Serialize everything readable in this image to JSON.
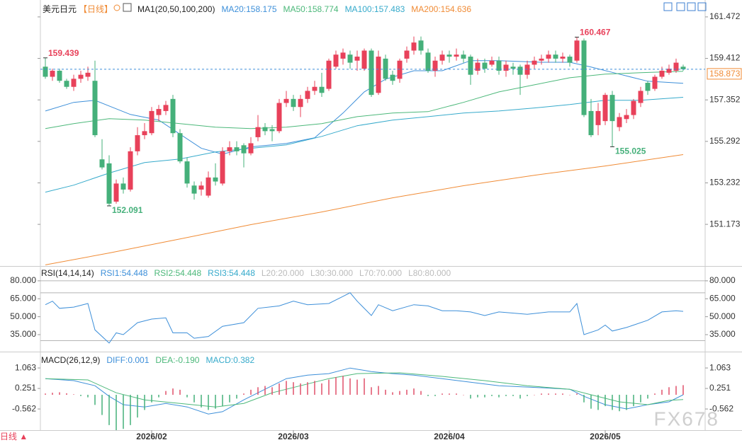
{
  "chart_data": [
    {
      "type": "candlestick",
      "title": "美元日元",
      "period": "【日线】",
      "indicator": "MA1(20,50,100,200)",
      "categories": [
        null,
        null,
        null,
        null,
        null,
        null,
        null,
        null,
        null,
        null,
        null,
        null,
        null,
        null,
        null,
        "2026/02",
        null,
        null,
        null,
        null,
        null,
        null,
        null,
        null,
        null,
        null,
        null,
        null,
        null,
        null,
        null,
        null,
        null,
        null,
        null,
        "2026/03",
        null,
        null,
        null,
        null,
        null,
        null,
        null,
        null,
        null,
        null,
        null,
        null,
        null,
        null,
        null,
        null,
        null,
        null,
        null,
        null,
        null,
        "2026/04",
        null,
        null,
        null,
        null,
        null,
        null,
        null,
        null,
        null,
        null,
        null,
        null,
        null,
        null,
        null,
        null,
        null,
        null,
        null,
        null,
        null,
        "2026/05",
        null,
        null,
        null,
        null,
        null,
        null,
        null,
        null,
        null,
        null,
        null
      ],
      "open": [
        159.0,
        158.5,
        158.8,
        158.3,
        158.0,
        158.4,
        158.5,
        158.3,
        154.4,
        154.2,
        152.3,
        153.2,
        152.9,
        154.8,
        155.6,
        155.7,
        156.6,
        156.8,
        157.4,
        155.7,
        154.3,
        153.1,
        152.9,
        152.6,
        153.5,
        153.2,
        154.8,
        155.0,
        155.1,
        154.7,
        155.5,
        156.0,
        155.9,
        155.8,
        157.2,
        157.4,
        157.0,
        157.4,
        157.8,
        158.0,
        157.9,
        159.0,
        159.4,
        159.6,
        159.3,
        158.9,
        159.8,
        157.7,
        159.4,
        158.6,
        158.4,
        159.4,
        159.8,
        160.3,
        159.7,
        158.8,
        159.3,
        159.6,
        159.5,
        159.6,
        159.5,
        158.8,
        159.2,
        159.1,
        159.3,
        158.8,
        159.0,
        159.0,
        158.6,
        159.1,
        159.3,
        159.4,
        159.6,
        159.4,
        159.5,
        159.3,
        160.3,
        156.8,
        156.1,
        156.3,
        157.6,
        156.0,
        156.4,
        156.6,
        157.2,
        158.2,
        157.9,
        158.5,
        158.7,
        158.8,
        159.0
      ],
      "high": [
        159.439,
        158.9,
        158.9,
        158.4,
        158.6,
        158.8,
        159.0,
        159.3,
        155.4,
        154.6,
        153.4,
        153.5,
        155.0,
        156.0,
        156.2,
        157.0,
        157.1,
        157.3,
        157.6,
        155.9,
        154.5,
        153.3,
        153.3,
        153.8,
        154.2,
        155.0,
        155.3,
        155.3,
        155.2,
        155.5,
        156.6,
        156.2,
        156.1,
        157.4,
        157.8,
        157.6,
        157.6,
        158.0,
        158.3,
        158.7,
        159.4,
        159.8,
        159.9,
        159.8,
        159.8,
        159.9,
        159.9,
        159.8,
        159.6,
        158.8,
        159.4,
        160.0,
        160.5,
        160.5,
        159.9,
        159.5,
        159.8,
        159.8,
        159.9,
        159.8,
        159.6,
        159.4,
        159.4,
        159.5,
        159.5,
        159.3,
        159.2,
        159.1,
        159.3,
        159.5,
        159.6,
        159.8,
        159.8,
        159.7,
        159.6,
        160.467,
        160.4,
        157.4,
        157.2,
        157.7,
        157.8,
        156.7,
        156.9,
        157.4,
        158.0,
        158.3,
        158.6,
        159.0,
        159.1,
        159.4,
        159.1
      ],
      "low": [
        158.4,
        158.3,
        158.2,
        157.9,
        157.8,
        158.2,
        158.3,
        155.5,
        153.9,
        152.091,
        152.2,
        152.7,
        152.8,
        154.6,
        155.4,
        155.6,
        156.3,
        156.6,
        155.5,
        154.2,
        153.0,
        152.4,
        152.6,
        152.5,
        153.1,
        153.1,
        154.6,
        154.6,
        154.0,
        154.6,
        155.3,
        155.6,
        155.3,
        155.7,
        157.0,
        156.8,
        156.5,
        157.2,
        157.6,
        157.5,
        157.8,
        158.9,
        159.1,
        158.9,
        158.8,
        158.8,
        157.5,
        157.6,
        158.3,
        158.1,
        158.2,
        159.2,
        159.6,
        159.6,
        158.7,
        158.5,
        159.1,
        159.2,
        159.3,
        159.2,
        158.1,
        158.6,
        158.7,
        159.0,
        158.6,
        158.5,
        158.6,
        157.6,
        158.4,
        158.9,
        159.1,
        159.2,
        159.2,
        159.2,
        159.0,
        159.2,
        156.5,
        155.5,
        155.6,
        156.1,
        155.025,
        155.8,
        156.2,
        156.4,
        157.0,
        157.6,
        157.8,
        158.4,
        158.6,
        158.7,
        158.8
      ],
      "close": [
        158.5,
        158.8,
        158.3,
        158.0,
        158.4,
        158.6,
        158.7,
        155.6,
        154.0,
        152.2,
        153.2,
        152.9,
        154.8,
        155.6,
        155.8,
        156.8,
        156.9,
        157.1,
        155.7,
        154.3,
        153.2,
        152.7,
        153.1,
        153.5,
        153.3,
        154.8,
        155.0,
        154.8,
        154.7,
        155.2,
        156.0,
        155.8,
        155.8,
        157.2,
        157.4,
        157.0,
        157.4,
        157.8,
        158.0,
        157.7,
        159.3,
        159.6,
        159.7,
        159.2,
        159.5,
        159.8,
        157.6,
        159.5,
        158.4,
        158.3,
        159.3,
        159.8,
        160.2,
        159.8,
        158.8,
        159.3,
        159.6,
        159.5,
        159.6,
        159.4,
        158.6,
        159.2,
        158.9,
        159.3,
        158.8,
        159.1,
        158.9,
        158.6,
        159.1,
        159.3,
        159.4,
        159.6,
        159.4,
        159.5,
        159.2,
        160.3,
        156.6,
        155.6,
        156.8,
        157.6,
        156.3,
        156.5,
        156.6,
        157.3,
        157.8,
        157.8,
        158.5,
        158.8,
        158.9,
        159.2,
        158.873
      ],
      "up_color": "#e8415a",
      "down_color": "#45b07a",
      "ylim": [
        149.14,
        161.96
      ],
      "yticks": [
        151.173,
        153.232,
        155.292,
        157.352,
        159.412,
        161.472
      ],
      "series": [
        {
          "name": "MA20:158.175",
          "color": "#3d8fd9",
          "x": [
            0,
            4,
            7,
            9,
            12,
            16,
            19,
            22,
            25,
            29,
            34,
            38,
            42,
            45,
            48,
            52,
            56,
            60,
            64,
            70,
            74,
            77,
            81,
            85,
            90
          ],
          "values": [
            156.8,
            157.23,
            157.33,
            157.05,
            156.63,
            156.35,
            155.65,
            154.95,
            154.66,
            155.02,
            155.19,
            155.47,
            156.7,
            157.75,
            158.38,
            158.8,
            158.8,
            159.3,
            159.3,
            159.22,
            159.22,
            158.98,
            158.63,
            158.28,
            158.175
          ]
        },
        {
          "name": "MA50:158.774",
          "color": "#4cb87a",
          "x": [
            0,
            4,
            9,
            14,
            19,
            24,
            29,
            34,
            39,
            44,
            49,
            54,
            59,
            64,
            69,
            74,
            79,
            84,
            90
          ],
          "values": [
            155.93,
            156.17,
            156.42,
            156.35,
            156.17,
            156.0,
            155.93,
            156.0,
            156.17,
            156.52,
            156.7,
            156.77,
            157.23,
            157.75,
            158.1,
            158.45,
            158.63,
            158.7,
            158.774
          ]
        },
        {
          "name": "MA100:157.483",
          "color": "#36aacb",
          "x": [
            0,
            4,
            9,
            14,
            19,
            24,
            29,
            34,
            39,
            44,
            49,
            54,
            59,
            64,
            69,
            74,
            79,
            84,
            90
          ],
          "values": [
            152.77,
            153.12,
            153.72,
            154.24,
            154.42,
            154.77,
            154.95,
            155.12,
            155.54,
            156.07,
            156.35,
            156.52,
            156.7,
            156.8,
            156.95,
            157.12,
            157.33,
            157.33,
            157.483
          ]
        },
        {
          "name": "MA200:154.636",
          "color": "#f08b35",
          "x": [
            0,
            9,
            19,
            29,
            39,
            49,
            59,
            69,
            79,
            90
          ],
          "values": [
            149.16,
            149.75,
            150.45,
            151.16,
            151.79,
            152.49,
            153.09,
            153.61,
            154.07,
            154.636
          ]
        }
      ]
    },
    {
      "type": "line",
      "title": "RSI(14,14,14)",
      "ylim": [
        22,
        90
      ],
      "yticks": [
        {
          "value": 35,
          "label": "35.000"
        },
        {
          "value": 50,
          "label": "50.000"
        },
        {
          "value": 65,
          "label": "65.000"
        },
        {
          "value": 80,
          "label": "80.000"
        }
      ],
      "levels": [
        20,
        30,
        70,
        80
      ],
      "level_color": "#b5b5b5",
      "labels": [
        {
          "text": "RSI2:54.448",
          "color": "#4cb87a"
        },
        {
          "text": "RSI3:54.448",
          "color": "#36aacb"
        },
        {
          "text": "L20:20.000",
          "color": "#bbbbbb"
        },
        {
          "text": "L30:30.000",
          "color": "#bbbbbb"
        },
        {
          "text": "L70:70.000",
          "color": "#bbbbbb"
        },
        {
          "text": "L80:80.000",
          "color": "#bbbbbb"
        }
      ],
      "series": [
        {
          "name": "RSI1:54.448",
          "color": "#3d8fd9",
          "x": [
            0,
            1,
            2,
            4,
            6,
            7,
            9,
            10,
            11,
            13,
            15,
            17,
            18,
            20,
            21,
            23,
            25,
            28,
            30,
            33,
            35,
            37,
            40,
            42,
            43,
            44,
            46,
            47,
            49,
            52,
            54,
            56,
            58,
            60,
            62,
            64,
            68,
            71,
            74,
            75,
            76,
            78,
            79,
            80,
            82,
            85,
            87,
            89,
            90
          ],
          "values": [
            60,
            63,
            57,
            58,
            61,
            39,
            28,
            36.5,
            35,
            45,
            48,
            49,
            36.5,
            36.5,
            32,
            33.5,
            42,
            45,
            57,
            59,
            63,
            60,
            61,
            67,
            70,
            63,
            51,
            60,
            55,
            60,
            59,
            55,
            55,
            54,
            51,
            54,
            52,
            54,
            54,
            61,
            35,
            39,
            43,
            38,
            41,
            47,
            54,
            55,
            54.448
          ]
        }
      ]
    },
    {
      "type": "line",
      "title": "MACD(26,12,9)",
      "ylim": [
        -1.4,
        1.57
      ],
      "yticks": [
        -0.562,
        0.251,
        1.063
      ],
      "up_color": "#e0506a",
      "down_color": "#45b07a",
      "series": [
        {
          "name": "DIFF:0.001",
          "color": "#3d8fd9",
          "x": [
            0,
            4,
            7,
            9,
            11,
            14,
            17,
            20,
            23,
            25,
            28,
            31,
            34,
            37,
            40,
            43,
            46,
            49,
            52,
            56,
            60,
            64,
            70,
            74,
            76,
            79,
            82,
            85,
            88,
            90
          ],
          "values": [
            0.64,
            0.56,
            0.36,
            -0.06,
            -0.39,
            -0.48,
            -0.34,
            -0.48,
            -0.76,
            -0.67,
            -0.2,
            0.22,
            0.64,
            0.78,
            0.84,
            1.06,
            0.92,
            0.84,
            0.78,
            0.64,
            0.5,
            0.36,
            0.28,
            0.22,
            -0.06,
            -0.39,
            -0.56,
            -0.39,
            -0.28,
            0.001
          ]
        },
        {
          "name": "DEA:-0.190",
          "color": "#4cb87a",
          "x": [
            0,
            6,
            10,
            14,
            19,
            24,
            28,
            32,
            36,
            40,
            44,
            50,
            56,
            62,
            68,
            74,
            77,
            81,
            85,
            88,
            90
          ],
          "values": [
            0.64,
            0.59,
            0.08,
            -0.2,
            -0.34,
            -0.48,
            -0.34,
            0.08,
            0.36,
            0.64,
            0.84,
            0.87,
            0.73,
            0.56,
            0.36,
            0.22,
            0,
            -0.28,
            -0.39,
            -0.22,
            -0.19
          ]
        },
        {
          "name": "MACD:0.382",
          "color": "#36aacb",
          "type": "bar",
          "values": [
            0.05,
            0.08,
            0.1,
            0.06,
            0.02,
            -0.05,
            -0.1,
            -0.4,
            -0.8,
            -1.2,
            -1.4,
            -1.35,
            -1.2,
            -0.9,
            -0.6,
            -0.3,
            -0.1,
            0.15,
            0.25,
            0.2,
            -0.1,
            -0.3,
            -0.5,
            -0.6,
            -0.55,
            -0.45,
            -0.3,
            -0.15,
            0.05,
            0.2,
            0.3,
            0.35,
            0.3,
            0.45,
            0.55,
            0.5,
            0.45,
            0.5,
            0.55,
            0.45,
            0.6,
            0.7,
            0.75,
            0.65,
            0.6,
            0.65,
            0.3,
            0.35,
            0.2,
            0.1,
            0.15,
            0.2,
            0.25,
            0.15,
            -0.05,
            -0.05,
            0.05,
            0.05,
            0.05,
            0,
            -0.15,
            -0.1,
            -0.1,
            -0.05,
            -0.1,
            -0.05,
            -0.05,
            -0.15,
            -0.05,
            0,
            0.05,
            0.05,
            0.05,
            0.05,
            0,
            0.05,
            -0.3,
            -0.55,
            -0.6,
            -0.45,
            -0.6,
            -0.65,
            -0.6,
            -0.45,
            -0.3,
            -0.15,
            0.05,
            0.2,
            0.3,
            0.35,
            0.382
          ]
        }
      ]
    }
  ],
  "footer": {
    "period": "日线 ▲",
    "watermark": "FX678"
  }
}
